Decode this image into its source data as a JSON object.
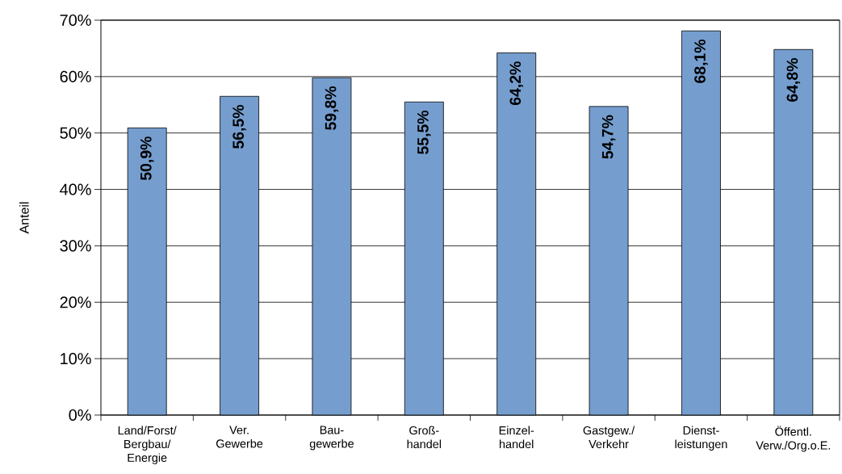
{
  "chart_data": {
    "type": "bar",
    "ylabel": "Anteil",
    "categories": [
      "Land/Forst/\nBergbau/\nEnergie",
      "Ver.\nGewerbe",
      "Bau-\ngewerbe",
      "Groß-\nhandel",
      "Einzel-\nhandel",
      "Gastgew./\nVerkehr",
      "Dienst-\nleistungen",
      "Öffentl.\nVerw./Org.o.E."
    ],
    "values": [
      50.9,
      56.5,
      59.8,
      55.5,
      64.2,
      54.7,
      68.1,
      64.8
    ],
    "value_labels": [
      "50,9%",
      "56,5%",
      "59,8%",
      "55,5%",
      "64,2%",
      "54,7%",
      "68,1%",
      "64,8%"
    ],
    "color": "#759ecf",
    "ylim": [
      0,
      70
    ],
    "yticks": [
      {
        "value": 0,
        "label": "0%"
      },
      {
        "value": 10,
        "label": "10%"
      },
      {
        "value": 20,
        "label": "20%"
      },
      {
        "value": 30,
        "label": "30%"
      },
      {
        "value": 40,
        "label": "40%"
      },
      {
        "value": 50,
        "label": "50%"
      },
      {
        "value": 60,
        "label": "60%"
      },
      {
        "value": 70,
        "label": "70%"
      }
    ],
    "grid": "y"
  }
}
